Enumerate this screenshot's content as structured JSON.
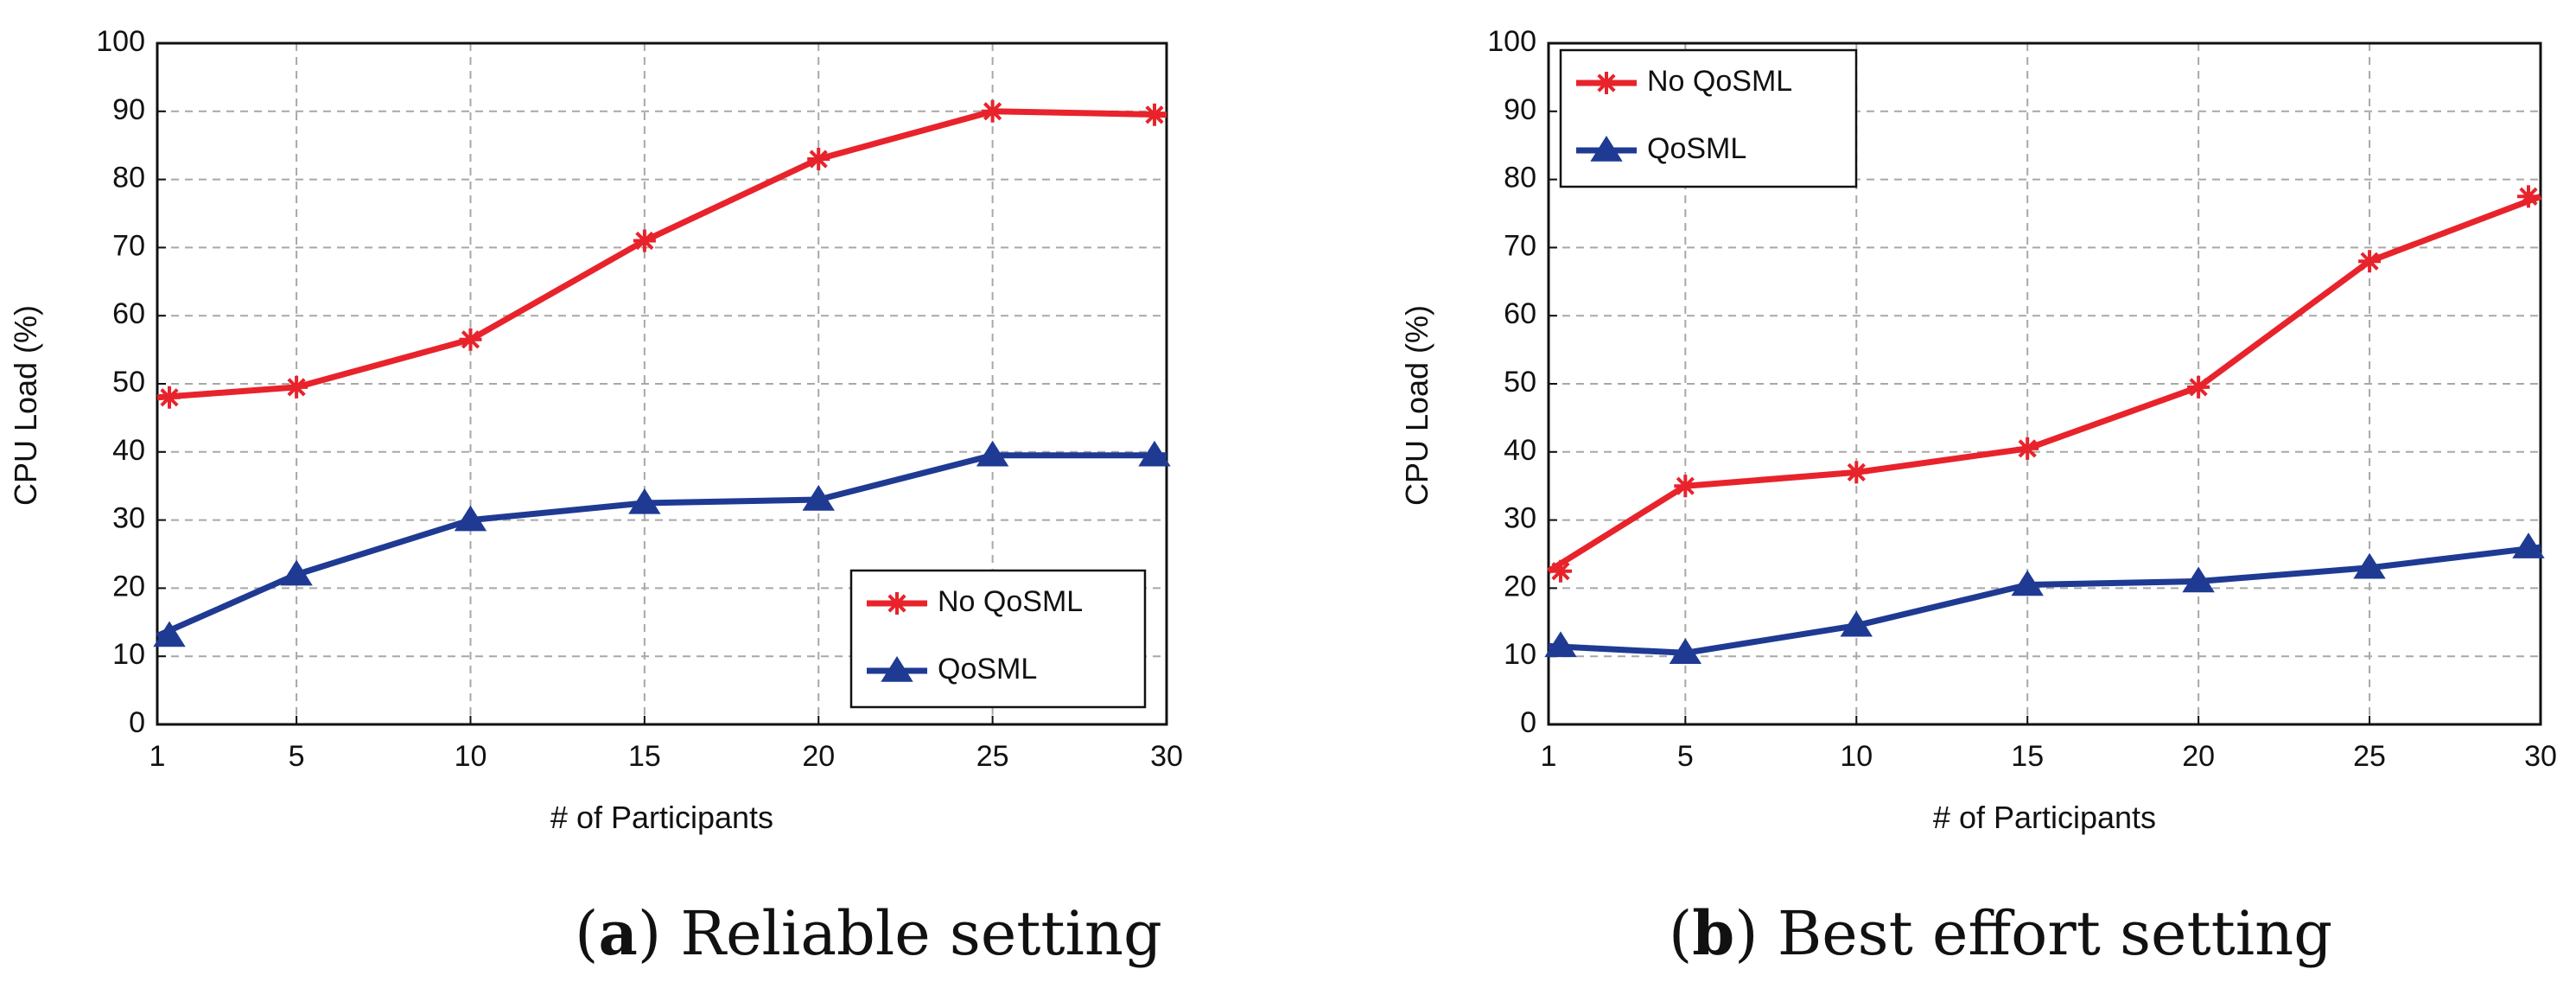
{
  "chart_data": [
    {
      "type": "line",
      "panel_letter": "a",
      "caption": "Reliable setting",
      "xlabel": "#  of Participants",
      "ylabel": "CPU Load   (%)",
      "x": [
        1,
        5,
        10,
        15,
        20,
        25,
        30
      ],
      "x_ticks": [
        "1",
        "5",
        "10",
        "15",
        "20",
        "25",
        "30"
      ],
      "y_ticks": [
        "0",
        "10",
        "20",
        "30",
        "40",
        "50",
        "60",
        "70",
        "80",
        "90",
        "100"
      ],
      "ylim": [
        0,
        100
      ],
      "grid": true,
      "legend_position": "lower-right",
      "series": [
        {
          "name": "No QoSML",
          "color": "#e8232b",
          "marker": "asterisk",
          "values": [
            48,
            49.5,
            56.5,
            71,
            83,
            90,
            89.5
          ]
        },
        {
          "name": "QoSML",
          "color": "#1f3a93",
          "marker": "triangle",
          "values": [
            13,
            22,
            30,
            32.5,
            33,
            39.5,
            39.5
          ]
        }
      ]
    },
    {
      "type": "line",
      "panel_letter": "b",
      "caption": "Best effort setting",
      "xlabel": "#  of Participants",
      "ylabel": "CPU Load   (%)",
      "x": [
        1,
        5,
        10,
        15,
        20,
        25,
        30
      ],
      "x_ticks": [
        "1",
        "5",
        "10",
        "15",
        "20",
        "25",
        "30"
      ],
      "y_ticks": [
        "0",
        "10",
        "20",
        "30",
        "40",
        "50",
        "60",
        "70",
        "80",
        "90",
        "100"
      ],
      "ylim": [
        0,
        100
      ],
      "grid": true,
      "legend_position": "upper-left",
      "series": [
        {
          "name": "No QoSML",
          "color": "#e8232b",
          "marker": "asterisk",
          "values": [
            22.5,
            35,
            37,
            40.5,
            49.5,
            68,
            77.5
          ]
        },
        {
          "name": "QoSML",
          "color": "#1f3a93",
          "marker": "triangle",
          "values": [
            11.5,
            10.5,
            14.5,
            20.5,
            21,
            23,
            26
          ]
        }
      ]
    }
  ]
}
